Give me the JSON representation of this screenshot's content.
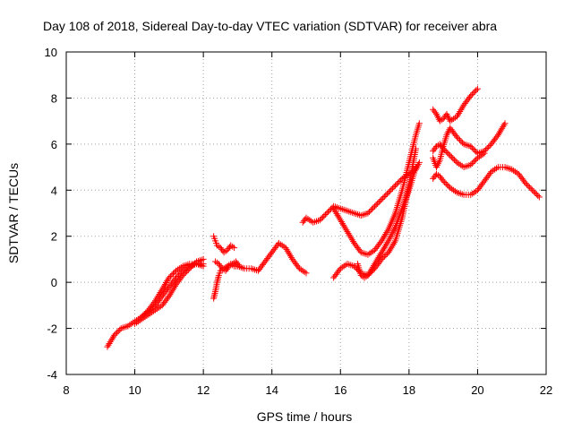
{
  "chart_data": {
    "type": "scatter",
    "title": "Day 108 of 2018, Sidereal Day-to-day VTEC variation (SDTVAR) for receiver abra",
    "xlabel": "GPS time / hours",
    "ylabel": "SDTVAR / TECUs",
    "xlim": [
      8,
      22
    ],
    "ylim": [
      -4,
      10
    ],
    "xticks": [
      "8",
      "10",
      "12",
      "14",
      "16",
      "18",
      "20",
      "22"
    ],
    "yticks": [
      "-4",
      "-2",
      "0",
      "2",
      "4",
      "6",
      "8",
      "10"
    ],
    "grid": true,
    "legend": "none",
    "marker": "+",
    "color": "#ff0000",
    "series": [
      {
        "x": [
          9.2,
          9.4,
          9.6,
          9.8,
          10.0,
          10.2,
          10.4,
          10.6,
          10.8,
          11.0,
          11.2,
          11.4,
          11.6,
          11.8,
          12.0
        ],
        "y": [
          -2.8,
          -2.3,
          -2.0,
          -1.9,
          -1.7,
          -1.5,
          -1.2,
          -0.8,
          -0.3,
          0.2,
          0.5,
          0.7,
          0.8,
          0.8,
          0.8
        ]
      },
      {
        "x": [
          10.0,
          10.2,
          10.4,
          10.6,
          10.8,
          11.0,
          11.2,
          11.4,
          11.6,
          11.8,
          12.0
        ],
        "y": [
          -1.8,
          -1.6,
          -1.4,
          -1.2,
          -1.0,
          -0.6,
          -0.1,
          0.3,
          0.6,
          0.9,
          1.0
        ]
      },
      {
        "x": [
          10.2,
          10.4,
          10.6,
          10.8,
          11.0,
          11.2,
          11.4,
          11.6,
          11.8,
          12.0
        ],
        "y": [
          -1.5,
          -1.3,
          -1.0,
          -0.6,
          -0.2,
          0.2,
          0.5,
          0.7,
          0.8,
          0.7
        ]
      },
      {
        "x": [
          12.3,
          12.35,
          12.4,
          12.45,
          12.5,
          12.6,
          12.7,
          12.8,
          12.9,
          13.0,
          13.2,
          13.4,
          13.6,
          13.8,
          14.0,
          14.2,
          14.4,
          14.6,
          14.8,
          15.0
        ],
        "y": [
          -0.7,
          -0.4,
          0.0,
          0.3,
          0.5,
          0.6,
          0.7,
          0.8,
          0.7,
          0.7,
          0.6,
          0.6,
          0.5,
          0.9,
          1.3,
          1.7,
          1.5,
          1.0,
          0.6,
          0.4
        ]
      },
      {
        "x": [
          12.3,
          12.35,
          12.4,
          12.5,
          12.6,
          12.7,
          12.8,
          12.9
        ],
        "y": [
          2.0,
          1.8,
          1.6,
          1.5,
          1.3,
          1.4,
          1.6,
          1.5
        ]
      },
      {
        "x": [
          12.35,
          12.45,
          12.55,
          12.65,
          12.75,
          12.85,
          12.95,
          13.05
        ],
        "y": [
          0.9,
          0.8,
          0.6,
          0.5,
          0.7,
          0.8,
          0.9,
          0.7
        ]
      },
      {
        "x": [
          14.9,
          15.0,
          15.2,
          15.4,
          15.6,
          15.8,
          16.0,
          16.2,
          16.4,
          16.6,
          16.8,
          17.0,
          17.2,
          17.4,
          17.6,
          17.8,
          18.0,
          18.2,
          18.3
        ],
        "y": [
          2.6,
          2.8,
          2.6,
          2.7,
          3.0,
          3.3,
          3.2,
          3.1,
          3.0,
          2.9,
          3.0,
          3.3,
          3.6,
          3.9,
          4.2,
          4.5,
          4.7,
          4.9,
          5.2
        ]
      },
      {
        "x": [
          15.8,
          16.0,
          16.2,
          16.4,
          16.6,
          16.8,
          17.0,
          17.2,
          17.4,
          17.6,
          17.8,
          18.0,
          18.2,
          18.3
        ],
        "y": [
          3.2,
          2.7,
          2.2,
          1.7,
          1.3,
          1.2,
          1.4,
          1.8,
          2.3,
          3.0,
          4.0,
          5.2,
          6.4,
          6.9
        ]
      },
      {
        "x": [
          15.8,
          16.0,
          16.2,
          16.4,
          16.6,
          16.8,
          17.0,
          17.2,
          17.4,
          17.6,
          17.8,
          18.0,
          18.2
        ],
        "y": [
          0.2,
          0.6,
          0.8,
          0.7,
          0.4,
          0.3,
          0.6,
          1.0,
          1.3,
          1.8,
          2.8,
          4.2,
          5.8
        ]
      },
      {
        "x": [
          16.5,
          16.6,
          16.7,
          16.8,
          17.0,
          17.2,
          17.4,
          17.6,
          17.8,
          18.0,
          18.2
        ],
        "y": [
          0.8,
          0.3,
          0.2,
          0.3,
          0.8,
          1.3,
          1.8,
          2.4,
          3.2,
          4.0,
          5.0
        ]
      },
      {
        "x": [
          18.7,
          18.8,
          18.9,
          19.0,
          19.1,
          19.2,
          19.4,
          19.6,
          19.8,
          20.0
        ],
        "y": [
          7.5,
          7.3,
          7.0,
          7.1,
          7.3,
          7.0,
          7.2,
          7.7,
          8.1,
          8.4
        ]
      },
      {
        "x": [
          18.7,
          18.8,
          18.9,
          19.0,
          19.1,
          19.2,
          19.4,
          19.6,
          19.8,
          20.0,
          20.2,
          20.4,
          20.6,
          20.8
        ],
        "y": [
          5.4,
          5.0,
          5.3,
          5.9,
          6.4,
          6.7,
          6.3,
          6.0,
          5.9,
          5.6,
          5.7,
          6.0,
          6.4,
          6.9
        ]
      },
      {
        "x": [
          18.7,
          18.8,
          18.9,
          19.0,
          19.2,
          19.4,
          19.6,
          19.8,
          20.0,
          20.2
        ],
        "y": [
          5.7,
          5.9,
          6.0,
          5.8,
          5.5,
          5.2,
          5.0,
          5.1,
          5.4,
          5.6
        ]
      },
      {
        "x": [
          18.7,
          18.8,
          18.9,
          19.0,
          19.2,
          19.4,
          19.6,
          19.8,
          20.0,
          20.2,
          20.4,
          20.6,
          20.8,
          21.0,
          21.2,
          21.4,
          21.6,
          21.8
        ],
        "y": [
          4.5,
          4.7,
          4.6,
          4.4,
          4.1,
          3.9,
          3.8,
          3.8,
          4.0,
          4.4,
          4.8,
          5.0,
          5.0,
          4.9,
          4.7,
          4.3,
          4.0,
          3.7
        ]
      }
    ]
  }
}
